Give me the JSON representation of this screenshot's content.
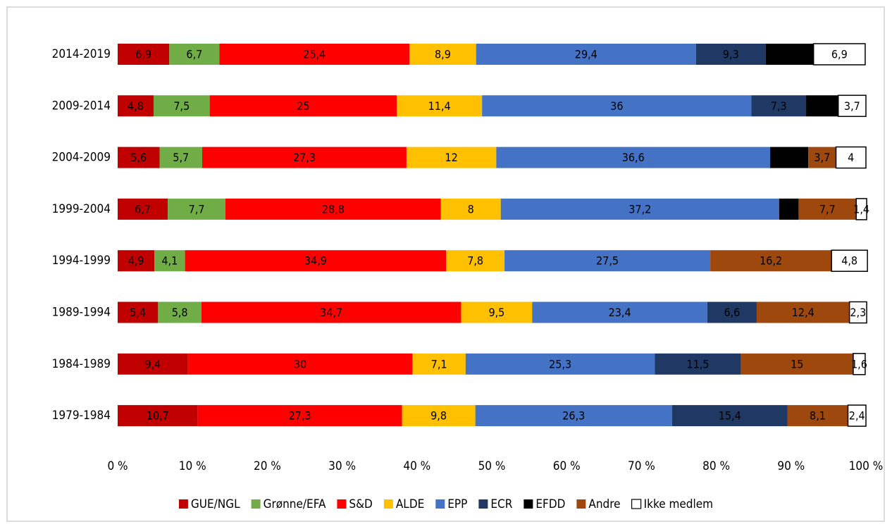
{
  "chart_data": {
    "type": "stacked-bar-horizontal",
    "categories": [
      "2014-2019",
      "2009-2014",
      "2004-2009",
      "1999-2004",
      "1994-1999",
      "1989-1994",
      "1984-1989",
      "1979-1984"
    ],
    "xlim": [
      0,
      100
    ],
    "xticks": [
      {
        "value": 0,
        "label": "0 %"
      },
      {
        "value": 10,
        "label": "10 %"
      },
      {
        "value": 20,
        "label": "20 %"
      },
      {
        "value": 30,
        "label": "30 %"
      },
      {
        "value": 40,
        "label": "40 %"
      },
      {
        "value": 50,
        "label": "50 %"
      },
      {
        "value": 60,
        "label": "60 %"
      },
      {
        "value": 70,
        "label": "70 %"
      },
      {
        "value": 80,
        "label": "80 %"
      },
      {
        "value": 90,
        "label": "90 %"
      },
      {
        "value": 100,
        "label": "100 %"
      }
    ],
    "legend": "bottom",
    "series": [
      {
        "name": "GUE/NGL",
        "color": "#c00000",
        "values": [
          6.9,
          4.8,
          5.6,
          6.7,
          4.9,
          5.4,
          9.4,
          10.7
        ],
        "value_labels": [
          "6,9",
          "4,8",
          "5,6",
          "6,7",
          "4,9",
          "5,4",
          "9,4",
          "10,7"
        ]
      },
      {
        "name": "Grønne/EFA",
        "color": "#70ad47",
        "values": [
          6.7,
          7.5,
          5.7,
          7.7,
          4.1,
          5.8,
          null,
          null
        ],
        "value_labels": [
          "6,7",
          "7,5",
          "5,7",
          "7,7",
          "4,1",
          "5,8",
          null,
          null
        ]
      },
      {
        "name": "S&D",
        "color": "#ff0000",
        "values": [
          25.4,
          25,
          27.3,
          28.8,
          34.9,
          34.7,
          30,
          27.3
        ],
        "value_labels": [
          "25,4",
          "25",
          "27,3",
          "28,8",
          "34,9",
          "34,7",
          "30",
          "27,3"
        ]
      },
      {
        "name": "ALDE",
        "color": "#ffc000",
        "values": [
          8.9,
          11.4,
          12,
          8,
          7.8,
          9.5,
          7.1,
          9.8
        ],
        "value_labels": [
          "8,9",
          "11,4",
          "12",
          "8",
          "7,8",
          "9,5",
          "7,1",
          "9,8"
        ]
      },
      {
        "name": "EPP",
        "color": "#4472c4",
        "values": [
          29.4,
          36,
          36.6,
          37.2,
          27.5,
          23.4,
          25.3,
          26.3
        ],
        "value_labels": [
          "29,4",
          "36",
          "36,6",
          "37,2",
          "27,5",
          "23,4",
          "25,3",
          "26,3"
        ]
      },
      {
        "name": "ECR",
        "color": "#1f3864",
        "values": [
          9.3,
          7.3,
          null,
          null,
          null,
          6.6,
          11.5,
          15.4
        ],
        "value_labels": [
          "9,3",
          "7,3",
          null,
          null,
          null,
          "6,6",
          "11,5",
          "15,4"
        ]
      },
      {
        "name": "EFDD",
        "color": "#000000",
        "values": [
          6.4,
          4.3,
          5.1,
          2.6,
          null,
          null,
          null,
          null
        ],
        "value_labels": [
          "6,4",
          "4,3",
          "5,1",
          "2,6",
          null,
          null,
          null,
          null
        ]
      },
      {
        "name": "Andre",
        "color": "#9e480e",
        "values": [
          null,
          null,
          3.7,
          7.7,
          16.2,
          12.4,
          15,
          8.1
        ],
        "value_labels": [
          null,
          null,
          "3,7",
          "7,7",
          "16,2",
          "12,4",
          "15",
          "8,1"
        ]
      },
      {
        "name": "Ikke medlem",
        "color": "#ffffff",
        "values": [
          6.9,
          3.7,
          4,
          1.4,
          4.8,
          2.3,
          1.6,
          2.4
        ],
        "value_labels": [
          "6,9",
          "3,7",
          "4",
          "1,4",
          "4,8",
          "2,3",
          "1,6",
          "2,4"
        ]
      }
    ]
  }
}
